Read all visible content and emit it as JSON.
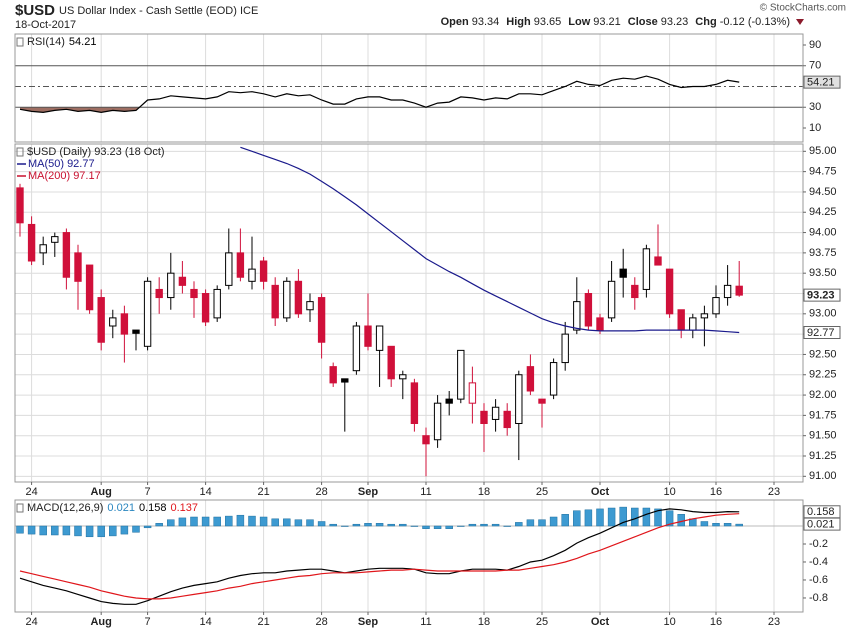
{
  "header": {
    "symbol": "$USD",
    "name": "US Dollar Index - Cash Settle (EOD) ICE",
    "date": "18-Oct-2017",
    "source": "© StockCharts.com",
    "quote": [
      {
        "label": "Open",
        "value": "93.34"
      },
      {
        "label": "High",
        "value": "93.65"
      },
      {
        "label": "Low",
        "value": "93.21"
      },
      {
        "label": "Close",
        "value": "93.23"
      },
      {
        "label": "Chg",
        "value": "-0.12 (-0.13%)"
      }
    ]
  },
  "chart_data": [
    {
      "type": "line",
      "label": "RSI(14)",
      "xlim": [
        -0.43,
        67.5
      ],
      "ylim": [
        -3.5,
        100.6
      ],
      "yticks": [
        90,
        70,
        30,
        10
      ],
      "levels": [
        70,
        50,
        30
      ],
      "fill_color": "#9e6e62",
      "series": [
        {
          "color": "#000000",
          "badge": true,
          "values": [
            28,
            26,
            25,
            27,
            28,
            26,
            27,
            25,
            27,
            26,
            27,
            37,
            38,
            41,
            40,
            39,
            38,
            40,
            45,
            44,
            45,
            43,
            40,
            43,
            41,
            42,
            37,
            33,
            33,
            38,
            40,
            40,
            37,
            37,
            34,
            30,
            34,
            35,
            40,
            39,
            37,
            39,
            38,
            43,
            43,
            42,
            46,
            50,
            55,
            52,
            51,
            56,
            58,
            57,
            60,
            57,
            52,
            49,
            50,
            50,
            52,
            56,
            54.21
          ]
        }
      ]
    },
    {
      "type": "candlestick",
      "legend_label": "$USD (Daily) 93.23 (18 Oct)",
      "xlim": [
        -0.43,
        67.5
      ],
      "ylim": [
        90.93,
        95.09
      ],
      "grid": true,
      "xticks": [
        {
          "value": 1,
          "label": "24"
        },
        {
          "value": 7,
          "label": "Aug"
        },
        {
          "value": 11,
          "label": "7"
        },
        {
          "value": 16,
          "label": "14"
        },
        {
          "value": 21,
          "label": "21"
        },
        {
          "value": 26,
          "label": "28"
        },
        {
          "value": 30,
          "label": "Sep"
        },
        {
          "value": 35,
          "label": "11"
        },
        {
          "value": 40,
          "label": "18"
        },
        {
          "value": 45,
          "label": "25"
        },
        {
          "value": 50,
          "label": "Oct"
        },
        {
          "value": 56,
          "label": "10"
        },
        {
          "value": 60,
          "label": "16"
        },
        {
          "value": 65,
          "label": "23"
        }
      ],
      "yticks": [
        {
          "value": 91,
          "label": "91.00"
        },
        {
          "value": 91.25,
          "label": "91.25"
        },
        {
          "value": 91.5,
          "label": "91.50"
        },
        {
          "value": 91.75,
          "label": "91.75"
        },
        {
          "value": 92,
          "label": "92.00"
        },
        {
          "value": 92.25,
          "label": "92.25"
        },
        {
          "value": 92.5,
          "label": "92.50"
        },
        {
          "value": 92.75,
          "label": "92.75"
        },
        {
          "value": 93,
          "label": "93.00"
        },
        {
          "value": 93.25,
          "label": "93.25"
        },
        {
          "value": 93.5,
          "label": "93.50"
        },
        {
          "value": 93.75,
          "label": "93.75"
        },
        {
          "value": 94,
          "label": "94.00"
        },
        {
          "value": 94.25,
          "label": "94.25"
        },
        {
          "value": 94.5,
          "label": "94.50"
        },
        {
          "value": 94.75,
          "label": "94.75"
        },
        {
          "value": 95,
          "label": "95.00"
        }
      ],
      "candles": {
        "up_color": "#000000",
        "down_color": "#d0103a",
        "badge": true,
        "open": [
          94.55,
          94.1,
          93.75,
          93.88,
          94.0,
          93.75,
          93.6,
          93.2,
          92.85,
          93.0,
          92.8,
          92.6,
          93.3,
          93.2,
          93.45,
          93.3,
          93.25,
          92.95,
          93.35,
          93.75,
          93.4,
          93.65,
          93.35,
          92.95,
          93.4,
          93.05,
          93.2,
          92.35,
          92.2,
          92.3,
          92.85,
          92.55,
          92.6,
          92.2,
          92.15,
          91.5,
          91.45,
          91.95,
          91.95,
          91.9,
          91.8,
          91.7,
          91.8,
          91.65,
          92.35,
          91.95,
          92.0,
          92.4,
          92.8,
          93.25,
          92.95,
          92.95,
          93.55,
          93.35,
          93.3,
          93.7,
          93.55,
          93.05,
          92.8,
          92.95,
          93.0,
          93.2,
          93.34
        ],
        "high": [
          94.6,
          94.2,
          93.95,
          94.0,
          94.05,
          93.85,
          93.6,
          93.3,
          93.05,
          93.1,
          92.8,
          93.45,
          93.45,
          93.75,
          93.65,
          93.4,
          93.3,
          93.35,
          94.05,
          94.05,
          93.95,
          93.7,
          93.45,
          93.45,
          93.55,
          93.25,
          93.25,
          92.4,
          92.2,
          92.9,
          93.25,
          92.85,
          92.6,
          92.3,
          92.2,
          91.6,
          92.0,
          92.05,
          92.55,
          92.35,
          91.9,
          91.95,
          91.9,
          92.3,
          92.5,
          91.95,
          92.45,
          92.9,
          93.45,
          93.3,
          93.0,
          93.65,
          93.8,
          93.45,
          93.85,
          94.1,
          93.55,
          93.05,
          93.0,
          93.1,
          93.35,
          93.6,
          93.65
        ],
        "low": [
          93.95,
          93.6,
          93.6,
          93.7,
          93.3,
          93.05,
          93.0,
          92.55,
          92.7,
          92.4,
          92.55,
          92.55,
          93.0,
          93.05,
          93.25,
          92.95,
          92.85,
          92.9,
          93.3,
          93.4,
          93.3,
          93.3,
          92.85,
          92.9,
          92.95,
          92.9,
          92.45,
          92.1,
          91.55,
          92.25,
          92.55,
          92.1,
          92.1,
          91.95,
          91.55,
          91.0,
          91.35,
          91.75,
          91.9,
          91.65,
          91.3,
          91.55,
          91.5,
          91.2,
          92.0,
          91.6,
          91.95,
          92.3,
          92.75,
          92.8,
          92.75,
          92.9,
          93.2,
          93.05,
          93.2,
          93.6,
          92.95,
          92.7,
          92.7,
          92.6,
          92.95,
          93.1,
          93.21
        ],
        "close": [
          94.12,
          93.65,
          93.85,
          93.95,
          93.45,
          93.4,
          93.05,
          92.65,
          92.95,
          92.75,
          92.76,
          93.4,
          93.2,
          93.5,
          93.35,
          93.2,
          92.9,
          93.3,
          93.75,
          93.45,
          93.55,
          93.4,
          92.95,
          93.4,
          93.0,
          93.15,
          92.65,
          92.15,
          92.16,
          92.85,
          92.6,
          92.85,
          92.2,
          92.25,
          91.65,
          91.4,
          91.9,
          91.9,
          92.55,
          92.15,
          91.65,
          91.85,
          91.6,
          92.25,
          92.05,
          91.9,
          92.4,
          92.75,
          93.15,
          92.85,
          92.8,
          93.4,
          93.45,
          93.2,
          93.8,
          93.6,
          93.0,
          92.8,
          92.95,
          93.0,
          93.2,
          93.35,
          93.23
        ]
      },
      "series": [
        {
          "name": "MA(50)",
          "color": "#1a1a8c",
          "badge": true,
          "values": [
            null,
            null,
            null,
            null,
            null,
            null,
            null,
            null,
            null,
            null,
            null,
            null,
            null,
            null,
            null,
            null,
            null,
            null,
            null,
            95.05,
            95.0,
            94.95,
            94.9,
            94.85,
            94.79,
            94.72,
            94.63,
            94.54,
            94.44,
            94.34,
            94.23,
            94.12,
            94.01,
            93.9,
            93.79,
            93.68,
            93.6,
            93.52,
            93.45,
            93.37,
            93.29,
            93.22,
            93.15,
            93.08,
            93.01,
            92.94,
            92.89,
            92.85,
            92.82,
            92.8,
            92.79,
            92.79,
            92.79,
            92.79,
            92.8,
            92.8,
            92.8,
            92.8,
            92.8,
            92.8,
            92.79,
            92.78,
            92.77
          ]
        },
        {
          "name": "MA(200)",
          "color": "#c8102e",
          "last": 97.17
        }
      ]
    },
    {
      "type": "line",
      "label": "MACD(12,26,9)",
      "xlim": [
        -0.43,
        67.5
      ],
      "ylim": [
        -0.956,
        0.289
      ],
      "xticks": [
        {
          "value": 1,
          "label": "24"
        },
        {
          "value": 7,
          "label": "Aug"
        },
        {
          "value": 11,
          "label": "7"
        },
        {
          "value": 16,
          "label": "14"
        },
        {
          "value": 21,
          "label": "21"
        },
        {
          "value": 26,
          "label": "28"
        },
        {
          "value": 30,
          "label": "Sep"
        },
        {
          "value": 35,
          "label": "11"
        },
        {
          "value": 40,
          "label": "18"
        },
        {
          "value": 45,
          "label": "25"
        },
        {
          "value": 50,
          "label": "Oct"
        },
        {
          "value": 56,
          "label": "10"
        },
        {
          "value": 60,
          "label": "16"
        },
        {
          "value": 65,
          "label": "23"
        }
      ],
      "yticks": [
        -0.2,
        -0.4,
        -0.6,
        -0.8
      ],
      "series": [
        {
          "style": "bar",
          "color": "#3d9ad1",
          "badge": true,
          "values": [
            -0.08,
            -0.09,
            -0.1,
            -0.1,
            -0.1,
            -0.11,
            -0.12,
            -0.12,
            -0.11,
            -0.09,
            -0.07,
            -0.02,
            0.03,
            0.07,
            0.09,
            0.1,
            0.1,
            0.1,
            0.11,
            0.12,
            0.11,
            0.1,
            0.08,
            0.08,
            0.07,
            0.07,
            0.05,
            0.02,
            0.0,
            0.02,
            0.03,
            0.03,
            0.02,
            0.02,
            0.0,
            -0.03,
            -0.03,
            -0.03,
            0.0,
            0.02,
            0.02,
            0.02,
            0.0,
            0.04,
            0.07,
            0.07,
            0.1,
            0.13,
            0.17,
            0.18,
            0.19,
            0.2,
            0.21,
            0.2,
            0.2,
            0.19,
            0.17,
            0.13,
            0.08,
            0.05,
            0.03,
            0.03,
            0.021
          ]
        },
        {
          "color": "#000000",
          "badge": true,
          "values": [
            -0.58,
            -0.62,
            -0.66,
            -0.69,
            -0.72,
            -0.76,
            -0.8,
            -0.84,
            -0.86,
            -0.87,
            -0.87,
            -0.83,
            -0.78,
            -0.73,
            -0.69,
            -0.66,
            -0.64,
            -0.62,
            -0.58,
            -0.55,
            -0.53,
            -0.52,
            -0.52,
            -0.5,
            -0.49,
            -0.48,
            -0.48,
            -0.5,
            -0.52,
            -0.5,
            -0.48,
            -0.47,
            -0.47,
            -0.47,
            -0.48,
            -0.52,
            -0.53,
            -0.53,
            -0.5,
            -0.48,
            -0.48,
            -0.48,
            -0.49,
            -0.45,
            -0.4,
            -0.38,
            -0.33,
            -0.27,
            -0.19,
            -0.13,
            -0.08,
            -0.02,
            0.04,
            0.08,
            0.13,
            0.17,
            0.19,
            0.18,
            0.16,
            0.15,
            0.15,
            0.16,
            0.158
          ]
        },
        {
          "color": "#e0161b",
          "values": [
            -0.5,
            -0.53,
            -0.56,
            -0.59,
            -0.62,
            -0.65,
            -0.68,
            -0.72,
            -0.75,
            -0.78,
            -0.8,
            -0.81,
            -0.81,
            -0.8,
            -0.78,
            -0.76,
            -0.74,
            -0.72,
            -0.69,
            -0.67,
            -0.64,
            -0.62,
            -0.6,
            -0.58,
            -0.56,
            -0.55,
            -0.53,
            -0.52,
            -0.52,
            -0.52,
            -0.51,
            -0.5,
            -0.49,
            -0.49,
            -0.48,
            -0.49,
            -0.5,
            -0.5,
            -0.5,
            -0.5,
            -0.5,
            -0.5,
            -0.49,
            -0.49,
            -0.47,
            -0.45,
            -0.43,
            -0.4,
            -0.36,
            -0.31,
            -0.27,
            -0.22,
            -0.17,
            -0.12,
            -0.07,
            -0.02,
            0.02,
            0.05,
            0.08,
            0.1,
            0.12,
            0.13,
            0.137
          ]
        }
      ]
    }
  ]
}
